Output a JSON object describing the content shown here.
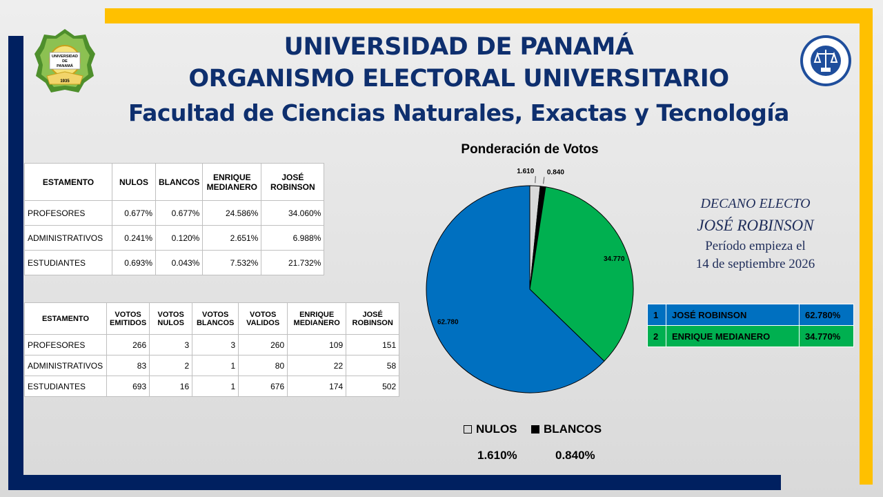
{
  "header": {
    "line1": "UNIVERSIDAD DE PANAMÁ",
    "line2": "ORGANISMO ELECTORAL UNIVERSITARIO",
    "line3": "Facultad de Ciencias Naturales, Exactas y Tecnología",
    "logo_left_text": [
      "UNIVERSIDAD",
      "DE",
      "PANAMÁ",
      "1935"
    ],
    "logo_right_text": "ORGANISMO ELECTORAL UNIVERSITARIO"
  },
  "table_percent": {
    "headers": [
      "ESTAMENTO",
      "NULOS",
      "BLANCOS",
      "ENRIQUE MEDIANERO",
      "JOSÉ ROBINSON"
    ],
    "rows": [
      [
        "PROFESORES",
        "0.677%",
        "0.677%",
        "24.586%",
        "34.060%"
      ],
      [
        "ADMINISTRATIVOS",
        "0.241%",
        "0.120%",
        "2.651%",
        "6.988%"
      ],
      [
        "ESTUDIANTES",
        "0.693%",
        "0.043%",
        "7.532%",
        "21.732%"
      ]
    ]
  },
  "table_votes": {
    "headers": [
      "ESTAMENTO",
      "VOTOS EMITIDOS",
      "VOTOS NULOS",
      "VOTOS BLANCOS",
      "VOTOS VALIDOS",
      "ENRIQUE MEDIANERO",
      "JOSÉ ROBINSON"
    ],
    "rows": [
      [
        "PROFESORES",
        "266",
        "3",
        "3",
        "260",
        "109",
        "151"
      ],
      [
        "ADMINISTRATIVOS",
        "83",
        "2",
        "1",
        "80",
        "22",
        "58"
      ],
      [
        "ESTUDIANTES",
        "693",
        "16",
        "1",
        "676",
        "174",
        "502"
      ]
    ]
  },
  "chart_data": {
    "type": "pie",
    "title": "Ponderación de Votos",
    "slices": [
      {
        "label": "NULOS",
        "value": 1.61,
        "display": "1.610",
        "color": "#d9d9d9"
      },
      {
        "label": "BLANCOS",
        "value": 0.84,
        "display": "0.840",
        "color": "#000000"
      },
      {
        "label": "ENRIQUE MEDIANERO",
        "value": 34.77,
        "display": "34.770",
        "color": "#00b050"
      },
      {
        "label": "JOSÉ ROBINSON",
        "value": 62.78,
        "display": "62.780",
        "color": "#0070c0"
      }
    ],
    "legend": [
      {
        "label": "NULOS",
        "value": "1.610%",
        "color": "#d9d9d9"
      },
      {
        "label": "BLANCOS",
        "value": "0.840%",
        "color": "#000000"
      }
    ],
    "legend_position": "bottom"
  },
  "decano": {
    "line1": "DECANO ELECTO",
    "line2": "JOSÉ ROBINSON",
    "line3": "Período empieza el",
    "line4": "14 de septiembre 2026"
  },
  "results": [
    {
      "rank": "1",
      "name": "JOSÉ ROBINSON",
      "pct": "62.780%",
      "color": "#0070c0"
    },
    {
      "rank": "2",
      "name": "ENRIQUE MEDIANERO",
      "pct": "34.770%",
      "color": "#00b050"
    }
  ],
  "colors": {
    "navy": "#002060",
    "gold": "#ffc000",
    "title": "#0e2f6e"
  }
}
